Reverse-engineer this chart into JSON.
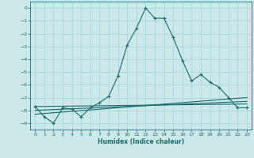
{
  "title": "",
  "xlabel": "Humidex (Indice chaleur)",
  "ylabel": "",
  "background_color": "#cce8e8",
  "grid_color": "#a8d0d0",
  "line_color": "#1a6b6b",
  "xlim": [
    -0.5,
    23.5
  ],
  "ylim": [
    -9.5,
    0.5
  ],
  "xticks": [
    0,
    1,
    2,
    3,
    4,
    5,
    6,
    7,
    8,
    9,
    10,
    11,
    12,
    13,
    14,
    15,
    16,
    17,
    18,
    19,
    20,
    21,
    22,
    23
  ],
  "yticks": [
    0,
    -1,
    -2,
    -3,
    -4,
    -5,
    -6,
    -7,
    -8,
    -9
  ],
  "main_x": [
    0,
    1,
    2,
    3,
    4,
    5,
    6,
    7,
    8,
    9,
    10,
    11,
    12,
    13,
    14,
    15,
    16,
    17,
    18,
    19,
    20,
    21,
    22,
    23
  ],
  "main_y": [
    -7.7,
    -8.5,
    -9.0,
    -7.8,
    -7.9,
    -8.5,
    -7.8,
    -7.4,
    -6.9,
    -5.3,
    -2.9,
    -1.6,
    0.0,
    -0.8,
    -0.8,
    -2.3,
    -4.1,
    -5.7,
    -5.2,
    -5.8,
    -6.2,
    -7.0,
    -7.8,
    -7.8
  ],
  "line2_x": [
    0,
    23
  ],
  "line2_y": [
    -7.7,
    -7.5
  ],
  "line3_x": [
    0,
    23
  ],
  "line3_y": [
    -8.0,
    -7.3
  ],
  "line4_x": [
    0,
    23
  ],
  "line4_y": [
    -8.3,
    -7.0
  ]
}
